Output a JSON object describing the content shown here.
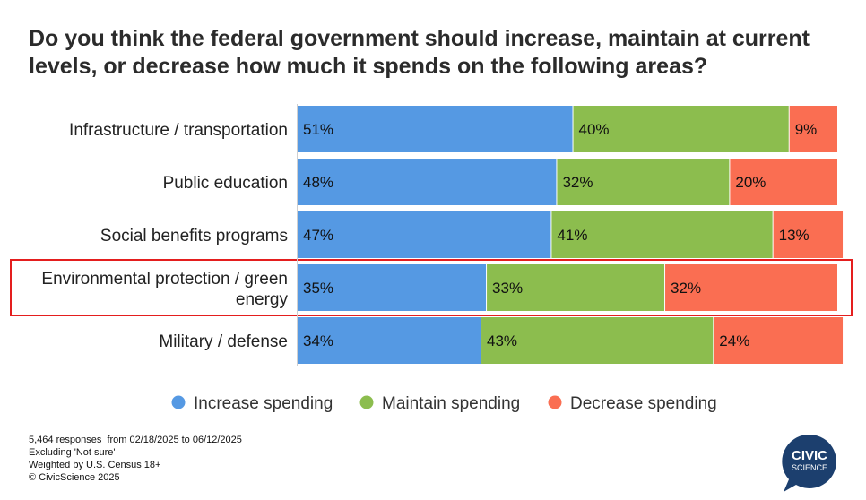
{
  "chart_data": {
    "type": "bar",
    "orientation": "horizontal",
    "stacked": true,
    "title": "Do you think the federal government should increase, maintain at current levels, or decrease how much it spends on the following areas?",
    "categories": [
      "Infrastructure / transportation",
      "Public education",
      "Social benefits programs",
      "Environmental protection / green energy",
      "Military / defense"
    ],
    "series": [
      {
        "name": "Increase spending",
        "color": "#5599E3",
        "values": [
          51,
          48,
          47,
          35,
          34
        ]
      },
      {
        "name": "Maintain spending",
        "color": "#8CBD4E",
        "values": [
          40,
          32,
          41,
          33,
          43
        ]
      },
      {
        "name": "Decrease spending",
        "color": "#FA6E52",
        "values": [
          9,
          20,
          13,
          32,
          24
        ]
      }
    ],
    "value_suffix": "%",
    "highlighted_category": "Environmental protection / green energy",
    "highlight_color": "#E41E1E",
    "legend_position": "bottom",
    "xlim": [
      0,
      100
    ]
  },
  "notes": [
    "5,464 responses  from 02/18/2025 to 06/12/2025",
    "Excluding 'Not sure'",
    "Weighted by U.S. Census 18+",
    "© CivicScience 2025"
  ],
  "logo": {
    "line1": "CIVIC",
    "line2": "SCIENCE",
    "color": "#1C3F6E"
  }
}
